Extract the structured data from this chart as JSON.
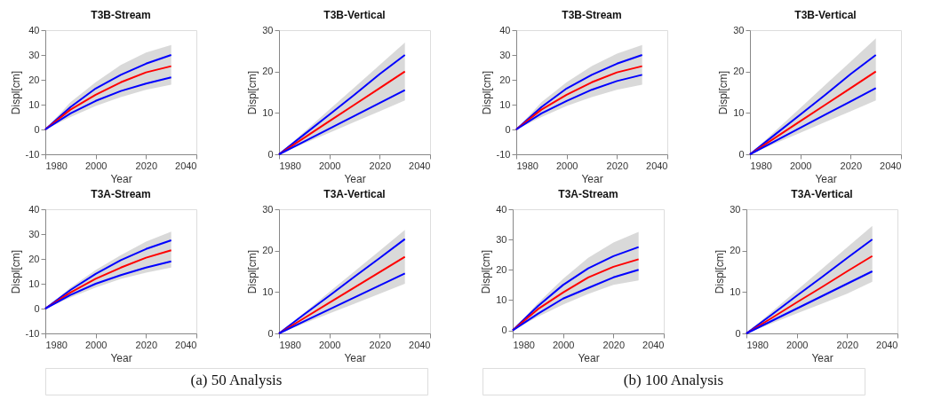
{
  "chart_data": [
    {
      "type": "line",
      "title": "T3B-Stream",
      "xlabel": "Year",
      "ylabel": "Displ[cm]",
      "xlim": [
        1980,
        2040
      ],
      "xticks": [
        1980,
        2000,
        2020,
        2040
      ],
      "ylim": [
        -10,
        40
      ],
      "yticks": [
        -10,
        0,
        10,
        20,
        30,
        40
      ],
      "grid": false,
      "x": [
        1980,
        1990,
        2000,
        2010,
        2020,
        2030
      ],
      "series": [
        {
          "color": "#0000ff",
          "values": [
            0,
            9,
            16.5,
            22,
            26.5,
            30
          ]
        },
        {
          "color": "#ff0000",
          "values": [
            0,
            8,
            14,
            19,
            23,
            25.5
          ],
          "lower": [
            0,
            5,
            9.5,
            13,
            16,
            18
          ],
          "upper": [
            0,
            11,
            19,
            26,
            31,
            34
          ]
        },
        {
          "color": "#0000ff",
          "values": [
            0,
            6.5,
            11.5,
            15.5,
            18.5,
            21
          ]
        }
      ]
    },
    {
      "type": "line",
      "title": "T3B-Vertical",
      "xlabel": "Year",
      "ylabel": "Displ[cm]",
      "xlim": [
        1980,
        2040
      ],
      "xticks": [
        1980,
        2000,
        2020,
        2040
      ],
      "ylim": [
        0,
        30
      ],
      "yticks": [
        0,
        10,
        20,
        30
      ],
      "grid": false,
      "x": [
        1980,
        1990,
        2000,
        2010,
        2020,
        2030
      ],
      "series": [
        {
          "color": "#0000ff",
          "values": [
            0,
            4.8,
            9.6,
            14.4,
            19.4,
            24
          ]
        },
        {
          "color": "#ff0000",
          "values": [
            0,
            4,
            8,
            12,
            16,
            20
          ],
          "lower": [
            0,
            2.6,
            5.2,
            7.8,
            10.4,
            13
          ],
          "upper": [
            0,
            5.4,
            10.8,
            16.2,
            21.6,
            27
          ]
        },
        {
          "color": "#0000ff",
          "values": [
            0,
            3.1,
            6.2,
            9.3,
            12.4,
            15.5
          ]
        }
      ]
    },
    {
      "type": "line",
      "title": "T3B-Stream",
      "xlabel": "Year",
      "ylabel": "Displ[cm]",
      "xlim": [
        1980,
        2040
      ],
      "xticks": [
        1980,
        2000,
        2020,
        2040
      ],
      "ylim": [
        -10,
        40
      ],
      "yticks": [
        -10,
        0,
        10,
        20,
        30,
        40
      ],
      "grid": false,
      "x": [
        1980,
        1990,
        2000,
        2010,
        2020,
        2030
      ],
      "series": [
        {
          "color": "#0000ff",
          "values": [
            0,
            9,
            16.5,
            22,
            26.5,
            30
          ]
        },
        {
          "color": "#ff0000",
          "values": [
            0,
            8,
            14,
            19,
            23,
            25.5
          ],
          "lower": [
            0,
            5,
            9.5,
            13,
            16,
            18
          ],
          "upper": [
            0,
            11,
            19,
            25.5,
            30.5,
            34
          ]
        },
        {
          "color": "#0000ff",
          "values": [
            0,
            6.5,
            11.5,
            16,
            19.5,
            22
          ]
        }
      ]
    },
    {
      "type": "line",
      "title": "T3B-Vertical",
      "xlabel": "Year",
      "ylabel": "Displ[cm]",
      "xlim": [
        1980,
        2040
      ],
      "xticks": [
        1980,
        2000,
        2020,
        2040
      ],
      "ylim": [
        0,
        30
      ],
      "yticks": [
        0,
        10,
        20,
        30
      ],
      "grid": false,
      "x": [
        1980,
        1990,
        2000,
        2010,
        2020,
        2030
      ],
      "series": [
        {
          "color": "#0000ff",
          "values": [
            0,
            4.8,
            9.6,
            14.4,
            19.4,
            24
          ]
        },
        {
          "color": "#ff0000",
          "values": [
            0,
            4,
            8,
            12,
            16,
            20
          ],
          "lower": [
            0,
            2.6,
            5.2,
            7.8,
            10.4,
            13
          ],
          "upper": [
            0,
            5.6,
            11.2,
            16.8,
            22.4,
            28
          ]
        },
        {
          "color": "#0000ff",
          "values": [
            0,
            3.2,
            6.4,
            9.6,
            12.8,
            16
          ]
        }
      ]
    },
    {
      "type": "line",
      "title": "T3A-Stream",
      "xlabel": "Year",
      "ylabel": "Displ[cm]",
      "xlim": [
        1980,
        2040
      ],
      "xticks": [
        1980,
        2000,
        2020,
        2040
      ],
      "ylim": [
        -10,
        40
      ],
      "yticks": [
        -10,
        0,
        10,
        20,
        30,
        40
      ],
      "grid": false,
      "x": [
        1980,
        1990,
        2000,
        2010,
        2020,
        2030
      ],
      "annotations": [
        "(a) 50 Analysis"
      ],
      "series": [
        {
          "color": "#0000ff",
          "values": [
            0,
            7.5,
            14,
            19.5,
            24,
            27.5
          ]
        },
        {
          "color": "#ff0000",
          "values": [
            0,
            6.5,
            12,
            16.5,
            20.5,
            23.5
          ],
          "lower": [
            0,
            4.5,
            8.5,
            12,
            14.5,
            16.5
          ],
          "upper": [
            0,
            8.5,
            15.5,
            21.5,
            27,
            31
          ]
        },
        {
          "color": "#0000ff",
          "values": [
            0,
            5.5,
            10,
            13.5,
            16.5,
            19
          ]
        }
      ]
    },
    {
      "type": "line",
      "title": "T3A-Vertical",
      "xlabel": "Year",
      "ylabel": "Displ[cm]",
      "xlim": [
        1980,
        2040
      ],
      "xticks": [
        1980,
        2000,
        2020,
        2040
      ],
      "ylim": [
        0,
        30
      ],
      "yticks": [
        0,
        10,
        20,
        30
      ],
      "grid": false,
      "x": [
        1980,
        1990,
        2000,
        2010,
        2020,
        2030
      ],
      "series": [
        {
          "color": "#0000ff",
          "values": [
            0,
            4.6,
            9.1,
            13.7,
            18.2,
            22.8
          ]
        },
        {
          "color": "#ff0000",
          "values": [
            0,
            3.7,
            7.4,
            11.1,
            14.8,
            18.5
          ],
          "lower": [
            0,
            2.4,
            4.8,
            7.2,
            9.6,
            12
          ],
          "upper": [
            0,
            5,
            10,
            15,
            20,
            25
          ]
        },
        {
          "color": "#0000ff",
          "values": [
            0,
            2.9,
            5.8,
            8.7,
            11.6,
            14.5
          ]
        }
      ]
    },
    {
      "type": "line",
      "title": "T3A-Stream",
      "xlabel": "Year",
      "ylabel": "Displ[cm]",
      "xlim": [
        1980,
        2040
      ],
      "xticks": [
        1980,
        2000,
        2020,
        2040
      ],
      "ylim": [
        -1,
        40
      ],
      "yticks": [
        0,
        10,
        20,
        30,
        40
      ],
      "grid": false,
      "x": [
        1980,
        1990,
        2000,
        2010,
        2020,
        2030
      ],
      "annotations": [
        "(b) 100 Analysis"
      ],
      "series": [
        {
          "color": "#0000ff",
          "values": [
            0,
            8,
            15,
            20.5,
            24.5,
            27.5
          ]
        },
        {
          "color": "#ff0000",
          "values": [
            0,
            7,
            12.5,
            17.5,
            21,
            23.5
          ],
          "lower": [
            0,
            4.5,
            8.5,
            12,
            15,
            16.5
          ],
          "upper": [
            0,
            9,
            17,
            24,
            29,
            32.5
          ]
        },
        {
          "color": "#0000ff",
          "values": [
            0,
            5.5,
            10.5,
            14,
            17.5,
            20
          ]
        }
      ]
    },
    {
      "type": "line",
      "title": "T3A-Vertical",
      "xlabel": "Year",
      "ylabel": "Displ[cm]",
      "xlim": [
        1980,
        2040
      ],
      "xticks": [
        1980,
        2000,
        2020,
        2040
      ],
      "ylim": [
        0,
        30
      ],
      "yticks": [
        0,
        10,
        20,
        30
      ],
      "grid": false,
      "x": [
        1980,
        1990,
        2000,
        2010,
        2020,
        2030
      ],
      "series": [
        {
          "color": "#0000ff",
          "values": [
            0,
            4.5,
            9.1,
            13.6,
            18.2,
            22.7
          ]
        },
        {
          "color": "#ff0000",
          "values": [
            0,
            3.7,
            7.5,
            11.2,
            15,
            18.7
          ],
          "lower": [
            0,
            2.4,
            4.8,
            7.2,
            9.6,
            12.5
          ],
          "upper": [
            0,
            5.2,
            10.4,
            15.6,
            20.8,
            26
          ]
        },
        {
          "color": "#0000ff",
          "values": [
            0,
            3,
            6,
            9,
            12,
            15
          ]
        }
      ]
    }
  ]
}
